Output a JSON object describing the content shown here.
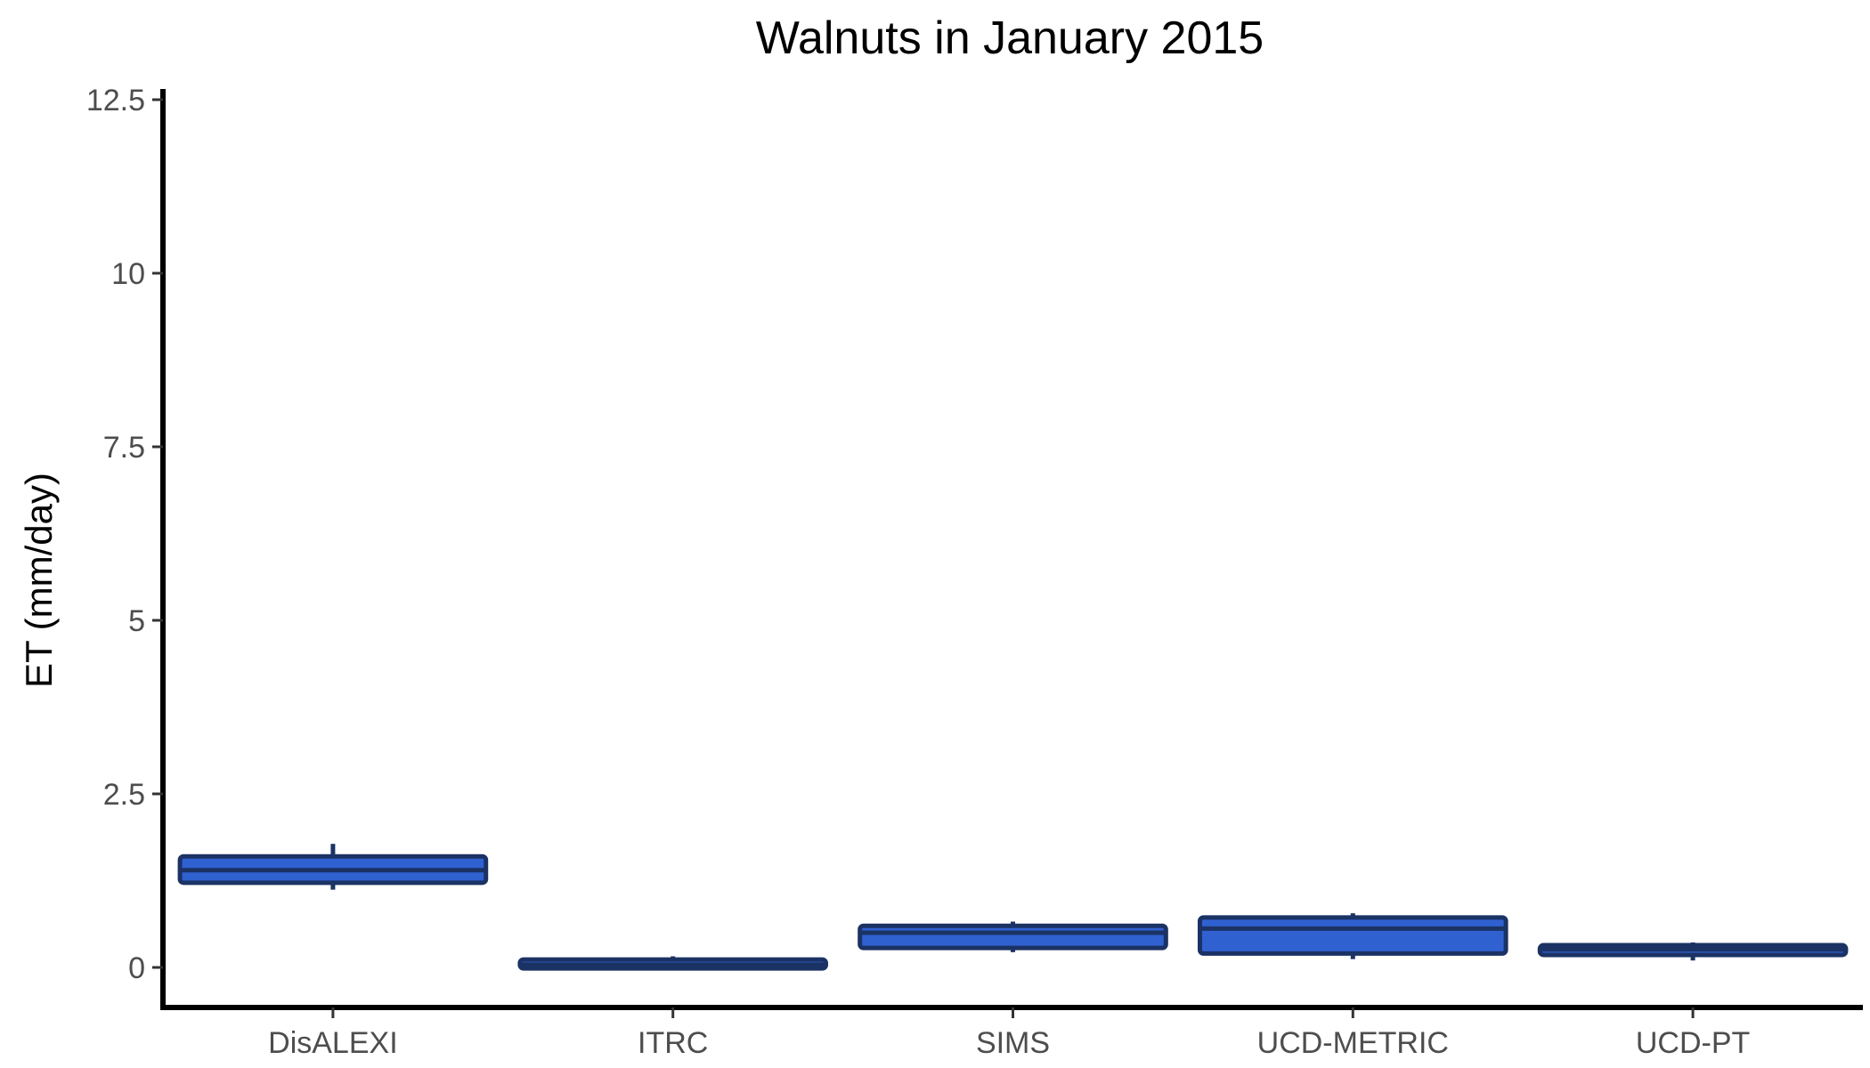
{
  "chart_data": {
    "type": "boxplot",
    "title": "Walnuts in January 2015",
    "xlabel": "",
    "ylabel": "ET (mm/day)",
    "ylim": [
      -0.6,
      12.6
    ],
    "yticks": [
      0,
      2.5,
      5,
      7.5,
      10,
      12.5
    ],
    "ytick_labels": [
      "0",
      "2.5",
      "5",
      "7.5",
      "10",
      "12.5"
    ],
    "grid": false,
    "categories": [
      "DisALEXI",
      "ITRC",
      "SIMS",
      "UCD-METRIC",
      "UCD-PT"
    ],
    "boxes": [
      {
        "category": "DisALEXI",
        "min": 1.12,
        "q1": 1.22,
        "median": 1.4,
        "q3": 1.6,
        "max": 1.78
      },
      {
        "category": "ITRC",
        "min": 0.0,
        "q1": 0.0,
        "median": 0.04,
        "q3": 0.1,
        "max": 0.16
      },
      {
        "category": "SIMS",
        "min": 0.22,
        "q1": 0.28,
        "median": 0.5,
        "q3": 0.6,
        "max": 0.66
      },
      {
        "category": "UCD-METRIC",
        "min": 0.12,
        "q1": 0.2,
        "median": 0.56,
        "q3": 0.72,
        "max": 0.78
      },
      {
        "category": "UCD-PT",
        "min": 0.1,
        "q1": 0.18,
        "median": 0.26,
        "q3": 0.32,
        "max": 0.36
      }
    ],
    "colors": {
      "box_fill": "#3061d1",
      "box_stroke": "#1b3264",
      "axis": "#000000",
      "tick_label": "#4d4d4d"
    }
  }
}
